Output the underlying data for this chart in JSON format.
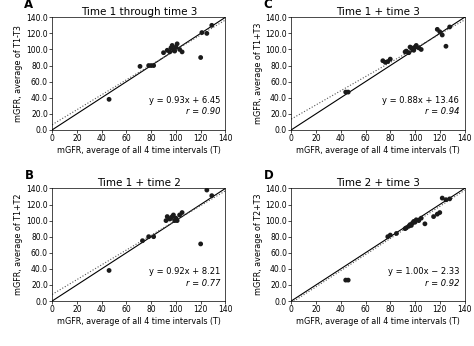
{
  "panels": [
    {
      "label": "A",
      "title": "Time 1 through time 3",
      "ylabel": "mGFR, average of T1-T3",
      "xlabel": "mGFR, average of all 4 time intervals (T)",
      "equation": "y = 0.93x + 6.45",
      "r_value": "r = 0.90",
      "slope": 0.93,
      "intercept": 6.45,
      "points_x": [
        46,
        71,
        78,
        80,
        82,
        90,
        93,
        95,
        96,
        97,
        98,
        99,
        100,
        101,
        103,
        105,
        120,
        121,
        125,
        129
      ],
      "points_y": [
        38,
        79,
        80,
        80,
        80,
        96,
        99,
        97,
        102,
        105,
        100,
        98,
        103,
        107,
        100,
        97,
        90,
        121,
        120,
        130
      ]
    },
    {
      "label": "C",
      "title": "Time 1 + time 3",
      "ylabel": "mGFR, average of T1+T3",
      "xlabel": "mGFR, average of all 4 time intervals (T)",
      "equation": "y = 0.88x + 13.46",
      "r_value": "r = 0.94",
      "slope": 0.88,
      "intercept": 13.46,
      "points_x": [
        44,
        46,
        74,
        76,
        78,
        80,
        92,
        93,
        95,
        96,
        97,
        98,
        99,
        100,
        101,
        103,
        105,
        118,
        120,
        122,
        125,
        128
      ],
      "points_y": [
        47,
        47,
        86,
        84,
        85,
        88,
        97,
        98,
        96,
        103,
        102,
        100,
        99,
        103,
        105,
        102,
        100,
        125,
        122,
        118,
        104,
        128
      ]
    },
    {
      "label": "B",
      "title": "Time 1 + time 2",
      "ylabel": "mGFR, average of T1+T2",
      "xlabel": "mGFR, average of all 4 time intervals (T)",
      "equation": "y = 0.92x + 8.21",
      "r_value": "r = 0.77",
      "slope": 0.92,
      "intercept": 8.21,
      "points_x": [
        46,
        73,
        78,
        82,
        92,
        93,
        95,
        96,
        97,
        98,
        99,
        100,
        101,
        103,
        105,
        120,
        125,
        129
      ],
      "points_y": [
        38,
        75,
        80,
        80,
        100,
        105,
        102,
        103,
        105,
        107,
        100,
        103,
        100,
        107,
        110,
        71,
        138,
        131
      ]
    },
    {
      "label": "D",
      "title": "Time 2 + time 3",
      "ylabel": "mGFR, average of T2+T3",
      "xlabel": "mGFR, average of all 4 time intervals (T)",
      "equation": "y = 1.00x − 2.33",
      "r_value": "r = 0.92",
      "slope": 1.0,
      "intercept": -2.33,
      "points_x": [
        44,
        46,
        78,
        80,
        85,
        92,
        93,
        95,
        96,
        97,
        98,
        99,
        100,
        101,
        103,
        105,
        108,
        115,
        118,
        120,
        122,
        125,
        128
      ],
      "points_y": [
        26,
        26,
        80,
        82,
        84,
        90,
        91,
        93,
        95,
        94,
        97,
        99,
        98,
        101,
        100,
        103,
        96,
        105,
        108,
        110,
        128,
        126,
        127
      ]
    }
  ],
  "xlim": [
    0,
    140
  ],
  "ylim": [
    0,
    140
  ],
  "xticks": [
    0,
    20,
    40,
    60,
    80,
    100,
    120,
    140
  ],
  "yticks": [
    0.0,
    20.0,
    40.0,
    60.0,
    80.0,
    100.0,
    120.0,
    140.0
  ],
  "ytick_labels": [
    "0.0",
    "20.0",
    "40.0",
    "60.0",
    "80.0",
    "100.0",
    "120.0",
    "140.0"
  ],
  "xtick_labels": [
    "0",
    "20",
    "40",
    "60",
    "80",
    "100",
    "120",
    "140"
  ],
  "bg_color": "#ffffff",
  "plot_bg_color": "#ffffff",
  "point_color": "#1a1a1a",
  "point_size": 12,
  "identity_line_color": "#000000",
  "regression_line_color": "#555555",
  "text_color": "#000000",
  "font_size_title": 7.5,
  "font_size_label": 5.8,
  "font_size_tick": 5.5,
  "font_size_eq": 6.0,
  "font_size_panel_label": 8.5
}
